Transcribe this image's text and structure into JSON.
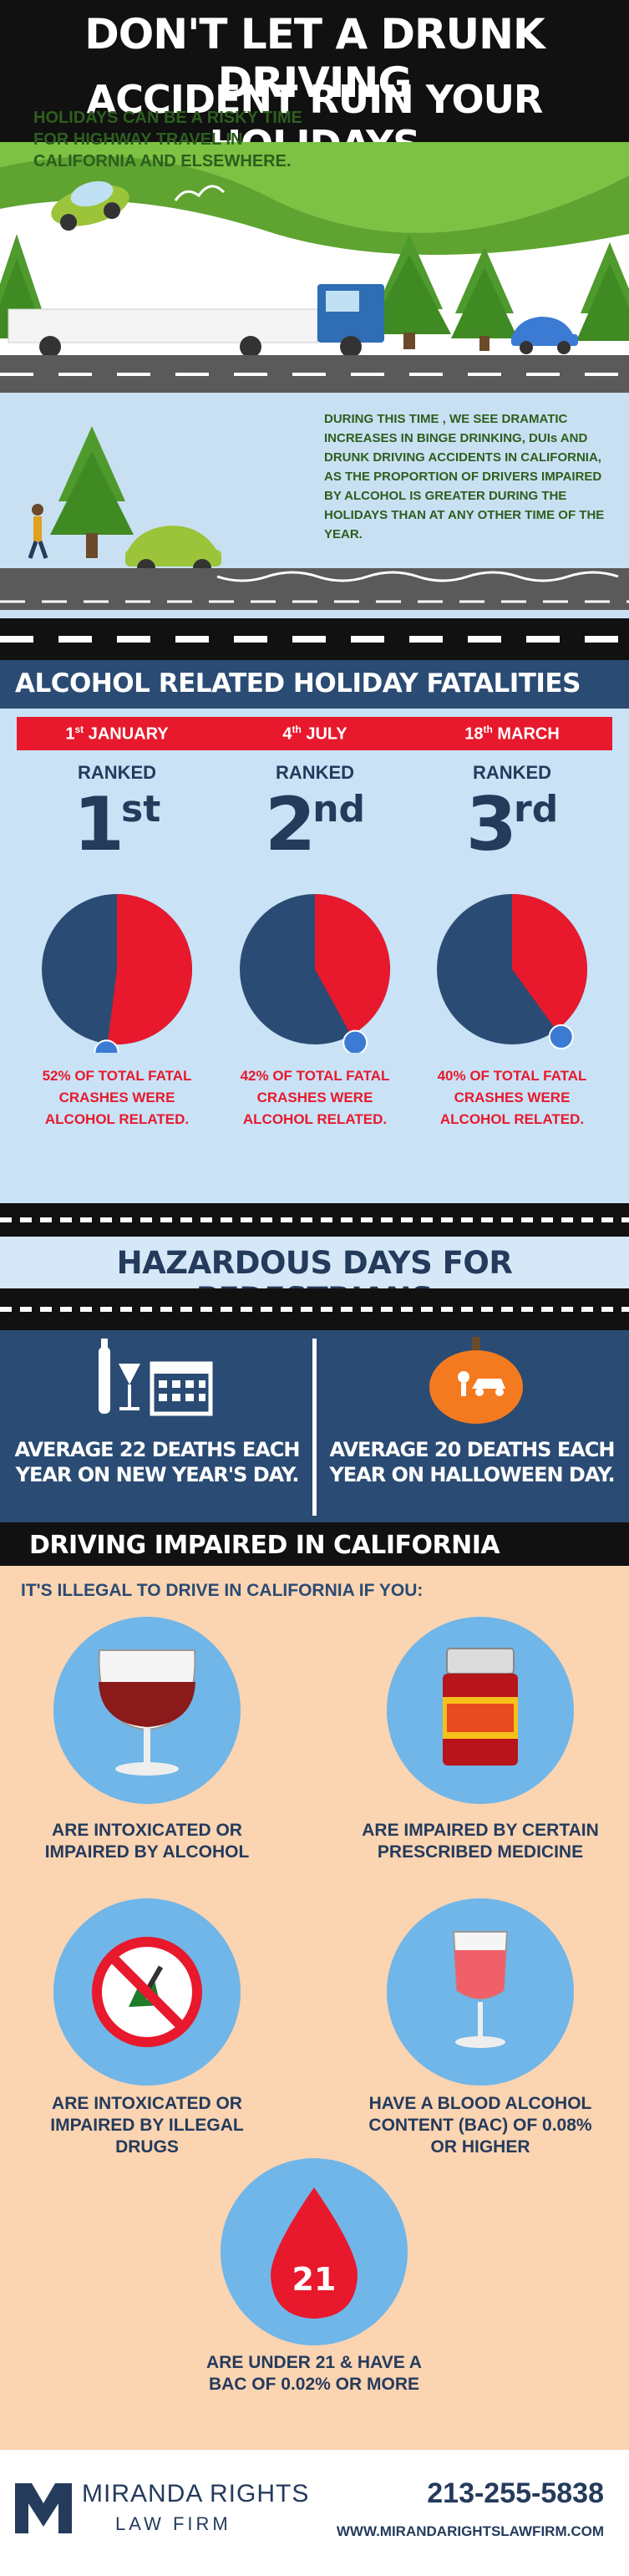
{
  "header": {
    "line1": "DON'T LET A DRUNK DRIVING",
    "line2": "ACCIDENT RUIN YOUR HOLIDAYS"
  },
  "intro": {
    "text1": "HOLIDAYS CAN BE A RISKY TIME FOR HIGHWAY TRAVEL IN CALIFORNIA AND ELSEWHERE.",
    "text2": "DURING THIS TIME , WE SEE DRAMATIC INCREASES IN BINGE DRINKING, DUIs AND DRUNK DRIVING ACCIDENTS IN CALIFORNIA, AS THE PROPORTION OF DRIVERS IMPAIRED BY ALCOHOL IS GREATER DURING THE HOLIDAYS THAN AT ANY OTHER TIME OF THE YEAR."
  },
  "fatalities": {
    "title": "ALCOHOL RELATED HOLIDAY FATALITIES",
    "items": [
      {
        "date_num": "1",
        "date_sup": "st",
        "date_rest": " JANUARY",
        "ranked": "RANKED",
        "rank_num": "1",
        "rank_sup": "st",
        "percent": 52,
        "caption": "52% OF TOTAL FATAL CRASHES WERE ALCOHOL RELATED."
      },
      {
        "date_num": "4",
        "date_sup": "th",
        "date_rest": " JULY",
        "ranked": "RANKED",
        "rank_num": "2",
        "rank_sup": "nd",
        "percent": 42,
        "caption": "42% OF TOTAL FATAL CRASHES WERE ALCOHOL RELATED."
      },
      {
        "date_num": "18",
        "date_sup": "th",
        "date_rest": " MARCH",
        "ranked": "RANKED",
        "rank_num": "3",
        "rank_sup": "rd",
        "percent": 40,
        "caption": "40% OF TOTAL FATAL CRASHES WERE ALCOHOL RELATED."
      }
    ]
  },
  "pedestrians": {
    "title": "HAZARDOUS DAYS FOR PEDESTRIANS",
    "left": "AVERAGE 22 DEATHS EACH YEAR ON NEW YEAR'S DAY.",
    "right": "AVERAGE 20 DEATHS EACH YEAR ON HALLOWEEN DAY."
  },
  "california": {
    "title": "DRIVING IMPAIRED IN CALIFORNIA",
    "subtitle": "IT'S ILLEGAL TO DRIVE IN CALIFORNIA IF YOU:",
    "conditions": [
      "ARE INTOXICATED OR IMPAIRED BY ALCOHOL",
      "ARE IMPAIRED BY CERTAIN PRESCRIBED MEDICINE",
      "ARE INTOXICATED OR IMPAIRED BY ILLEGAL DRUGS",
      "HAVE A BLOOD ALCOHOL CONTENT (BAC) OF 0.08% OR HIGHER",
      "ARE UNDER 21 & HAVE A BAC OF 0.02% OR MORE"
    ],
    "age_badge": "21"
  },
  "footer": {
    "firm_name": "MIRANDA RIGHTS",
    "firm_sub": "LAW FIRM",
    "phone": "213-255-5838",
    "website": "WWW.MIRANDARIGHTSLAWFIRM.COM"
  },
  "colors": {
    "navy": "#2a4b73",
    "red": "#e8192c",
    "green_text": "#2d5e1e",
    "peach": "#fbd4b2",
    "light_blue": "#c9e2f6"
  }
}
